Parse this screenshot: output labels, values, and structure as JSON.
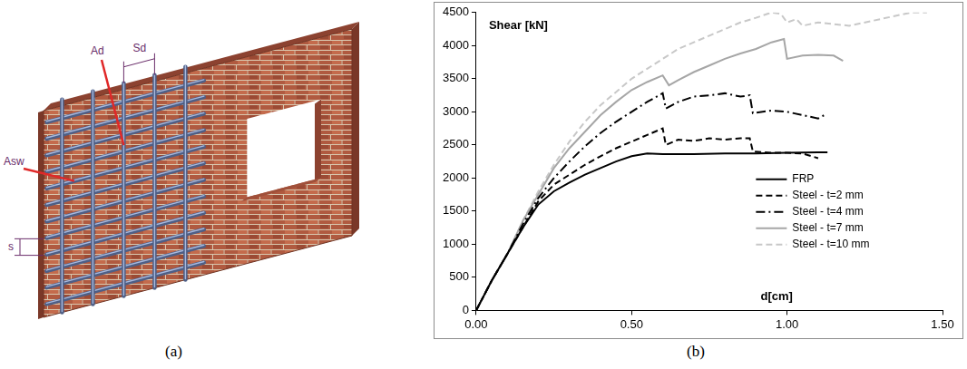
{
  "chart_data": {
    "type": "line",
    "ylabel": "Shear [kN]",
    "xlabel": "d[cm]",
    "xlim": [
      0,
      1.5
    ],
    "xticks": [
      {
        "value": 0,
        "label": "0.00"
      },
      {
        "value": 0.5,
        "label": "0.50"
      },
      {
        "value": 1,
        "label": "1.00"
      },
      {
        "value": 1.5,
        "label": "1.50"
      }
    ],
    "ylim": [
      0,
      4500
    ],
    "yticks": [
      0,
      500,
      1000,
      1500,
      2000,
      2500,
      3000,
      3500,
      4000,
      4500
    ],
    "grid": false,
    "legend": "lower right",
    "series": [
      {
        "name": "FRP",
        "color": "#000000",
        "line_style": "solid",
        "x": [
          0,
          0.05,
          0.1,
          0.15,
          0.2,
          0.25,
          0.3,
          0.35,
          0.4,
          0.45,
          0.5,
          0.55,
          0.6,
          0.7,
          0.8,
          0.9,
          1.0,
          1.1,
          1.13
        ],
        "values": [
          0,
          450,
          850,
          1250,
          1600,
          1800,
          1930,
          2050,
          2150,
          2250,
          2330,
          2370,
          2360,
          2360,
          2370,
          2370,
          2380,
          2390,
          2390
        ]
      },
      {
        "name": "Steel - t=2 mm",
        "color": "#000000",
        "line_style": "dashed",
        "x": [
          0,
          0.05,
          0.1,
          0.15,
          0.2,
          0.25,
          0.3,
          0.35,
          0.4,
          0.45,
          0.5,
          0.55,
          0.6,
          0.61,
          0.65,
          0.7,
          0.75,
          0.8,
          0.85,
          0.88,
          0.89,
          0.95,
          1.0,
          1.05,
          1.1
        ],
        "values": [
          0,
          450,
          850,
          1250,
          1650,
          1900,
          2050,
          2200,
          2330,
          2450,
          2550,
          2650,
          2750,
          2500,
          2580,
          2560,
          2600,
          2580,
          2600,
          2600,
          2400,
          2380,
          2380,
          2370,
          2300
        ]
      },
      {
        "name": "Steel - t=4 mm",
        "color": "#000000",
        "line_style": "dashdot",
        "x": [
          0,
          0.05,
          0.1,
          0.15,
          0.2,
          0.25,
          0.3,
          0.35,
          0.4,
          0.45,
          0.5,
          0.55,
          0.6,
          0.61,
          0.65,
          0.7,
          0.75,
          0.8,
          0.85,
          0.88,
          0.89,
          0.95,
          1.0,
          1.05,
          1.1,
          1.12
        ],
        "values": [
          0,
          450,
          850,
          1300,
          1700,
          2000,
          2250,
          2480,
          2680,
          2850,
          3000,
          3150,
          3280,
          3050,
          3150,
          3230,
          3250,
          3280,
          3230,
          3250,
          2980,
          3020,
          3000,
          2950,
          2900,
          2950
        ]
      },
      {
        "name": "Steel - t=7 mm",
        "color": "#a6a6a6",
        "line_style": "solid",
        "x": [
          0,
          0.05,
          0.1,
          0.15,
          0.2,
          0.25,
          0.3,
          0.35,
          0.4,
          0.45,
          0.5,
          0.55,
          0.6,
          0.62,
          0.65,
          0.7,
          0.75,
          0.8,
          0.85,
          0.9,
          0.95,
          0.99,
          1.0,
          1.05,
          1.1,
          1.15,
          1.18
        ],
        "values": [
          0,
          450,
          850,
          1350,
          1750,
          2150,
          2450,
          2700,
          2950,
          3150,
          3330,
          3450,
          3550,
          3400,
          3480,
          3600,
          3700,
          3800,
          3880,
          3950,
          4050,
          4100,
          3800,
          3850,
          3860,
          3850,
          3770
        ]
      },
      {
        "name": "Steel - t=10 mm",
        "color": "#c8c8c8",
        "line_style": "dashed",
        "x": [
          0,
          0.05,
          0.1,
          0.15,
          0.2,
          0.25,
          0.3,
          0.35,
          0.4,
          0.45,
          0.5,
          0.55,
          0.6,
          0.65,
          0.7,
          0.75,
          0.8,
          0.85,
          0.9,
          0.95,
          0.98,
          1.0,
          1.03,
          1.05,
          1.1,
          1.2,
          1.3,
          1.4,
          1.45
        ],
        "values": [
          0,
          450,
          850,
          1350,
          1800,
          2200,
          2550,
          2850,
          3100,
          3300,
          3500,
          3650,
          3800,
          3950,
          4050,
          4150,
          4250,
          4350,
          4420,
          4500,
          4480,
          4350,
          4400,
          4300,
          4350,
          4300,
          4400,
          4500,
          4500
        ]
      }
    ]
  },
  "diagram": {
    "labels": [
      "Ad",
      "Sd",
      "Asw",
      "s"
    ]
  },
  "panel_labels": [
    "(a)",
    "(b)"
  ]
}
